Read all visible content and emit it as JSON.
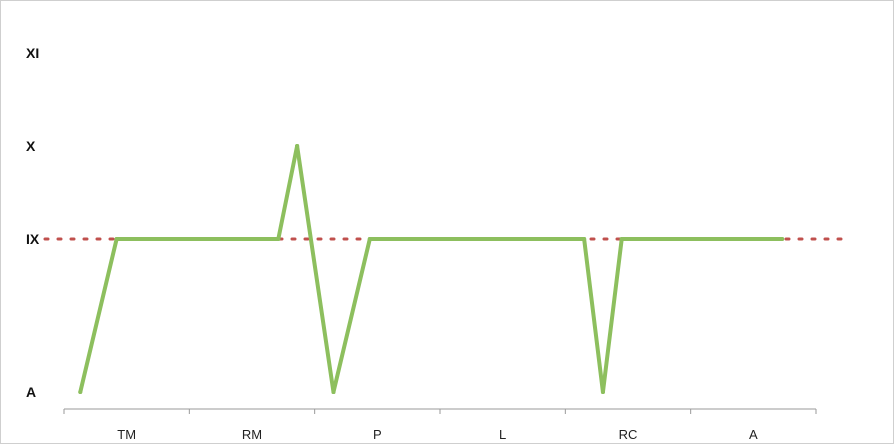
{
  "chart_data": {
    "type": "line",
    "title": "",
    "xlabel": "",
    "ylabel": "",
    "categories": [
      "TM",
      "RM",
      "P",
      "L",
      "RC",
      "A"
    ],
    "y_levels": [
      "A",
      "IX",
      "X",
      "XI"
    ],
    "grid": false,
    "legend": "none",
    "series": [
      {
        "color": "#8dbf5e",
        "points": [
          {
            "x": 0.13,
            "y": "A"
          },
          {
            "x": 0.42,
            "y": "IX"
          },
          {
            "x": 1.71,
            "y": "IX"
          },
          {
            "x": 1.86,
            "y": "X"
          },
          {
            "x": 2.15,
            "y": "A"
          },
          {
            "x": 2.44,
            "y": "IX"
          },
          {
            "x": 4.15,
            "y": "IX"
          },
          {
            "x": 4.3,
            "y": "A"
          },
          {
            "x": 4.45,
            "y": "IX"
          },
          {
            "x": 5.73,
            "y": "IX"
          }
        ]
      }
    ],
    "reference_line": {
      "y": "IX",
      "style": "dotted",
      "color": "#c0504d"
    }
  }
}
